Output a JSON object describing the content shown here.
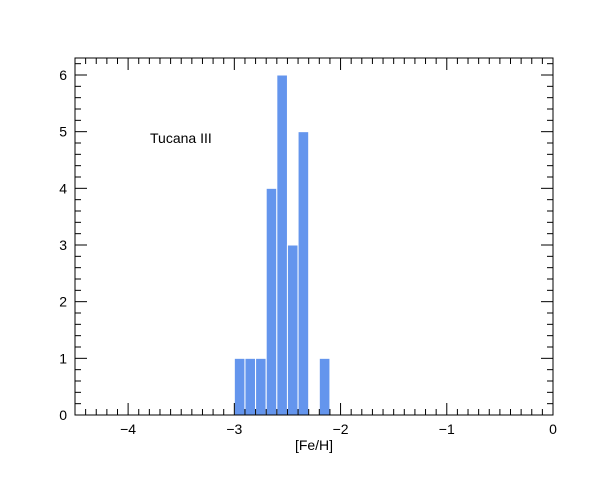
{
  "chart_data": {
    "type": "bar",
    "histogram": true,
    "xlabel": "[Fe/H]",
    "ylabel": "",
    "xlim": [
      -4.5,
      0
    ],
    "ylim": [
      0,
      6.3
    ],
    "bin_width": 0.1,
    "bins": [
      {
        "x0": -3.0,
        "x1": -2.9,
        "value": 1
      },
      {
        "x0": -2.9,
        "x1": -2.8,
        "value": 1
      },
      {
        "x0": -2.8,
        "x1": -2.7,
        "value": 1
      },
      {
        "x0": -2.7,
        "x1": -2.6,
        "value": 4
      },
      {
        "x0": -2.6,
        "x1": -2.5,
        "value": 6
      },
      {
        "x0": -2.5,
        "x1": -2.4,
        "value": 3
      },
      {
        "x0": -2.4,
        "x1": -2.3,
        "value": 5
      },
      {
        "x0": -2.2,
        "x1": -2.1,
        "value": 1
      }
    ],
    "x_ticks": [
      "−4",
      "−3",
      "−2",
      "−1",
      "0"
    ],
    "x_tick_values": [
      -4,
      -3,
      -2,
      -1,
      0
    ],
    "y_ticks": [
      "0",
      "1",
      "2",
      "3",
      "4",
      "5",
      "6"
    ],
    "y_tick_values": [
      0,
      1,
      2,
      3,
      4,
      5,
      6
    ],
    "annotation": "Tucana III",
    "bar_color": "#6495ed",
    "bar_edge_color": "#ffffff",
    "grid": false,
    "legend": "none"
  }
}
